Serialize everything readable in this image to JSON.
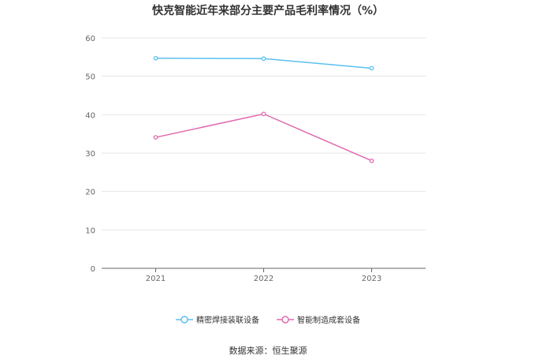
{
  "chart_data": {
    "type": "line",
    "title": "快克智能近年来部分主要产品毛利率情况（%）",
    "categories": [
      "2021",
      "2022",
      "2023"
    ],
    "series": [
      {
        "name": "精密焊接装联设备",
        "values": [
          54.7,
          54.6,
          52.1
        ],
        "color": "#5bc0ee"
      },
      {
        "name": "智能制造成套设备",
        "values": [
          34.1,
          40.2,
          28.0
        ],
        "color": "#e06aae"
      }
    ],
    "ylim": [
      0,
      60
    ],
    "yticks": [
      "0",
      "10",
      "20",
      "30",
      "40",
      "50",
      "60"
    ],
    "xlabel": "",
    "ylabel": "",
    "grid": true,
    "legend_position": "bottom"
  },
  "source": "数据来源：恒生聚源"
}
